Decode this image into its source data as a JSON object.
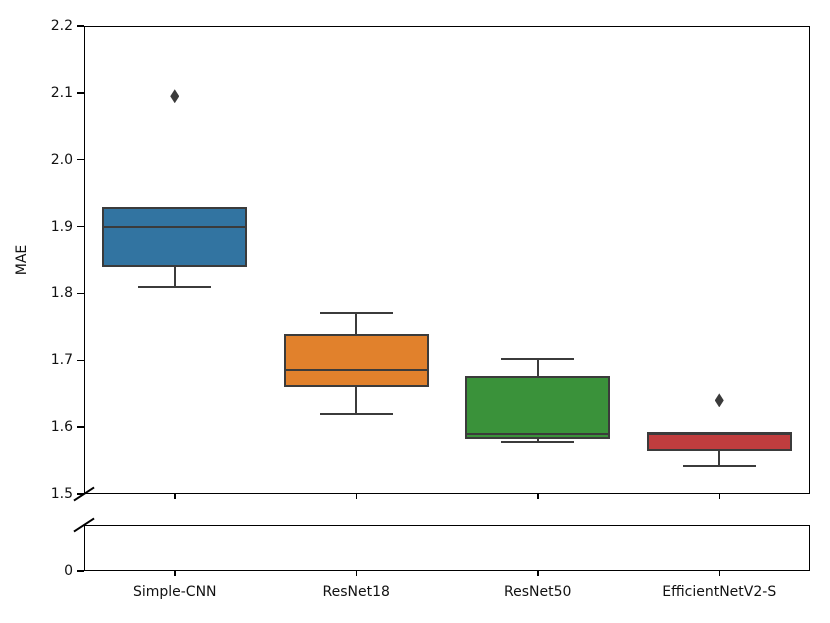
{
  "chart_data": {
    "type": "boxplot",
    "title": "",
    "ylabel": "MAE",
    "categories": [
      "Simple-CNN",
      "ResNet18",
      "ResNet50",
      "EfficientNetV2-S"
    ],
    "series": [
      {
        "name": "Simple-CNN",
        "color": "#3274a1",
        "whisker_low": 1.81,
        "q1": 1.84,
        "median": 1.9,
        "q3": 1.93,
        "whisker_high": 1.93,
        "outliers": [
          2.095
        ]
      },
      {
        "name": "ResNet18",
        "color": "#e1812c",
        "whisker_low": 1.62,
        "q1": 1.66,
        "median": 1.685,
        "q3": 1.74,
        "whisker_high": 1.77,
        "outliers": []
      },
      {
        "name": "ResNet50",
        "color": "#3a923a",
        "whisker_low": 1.578,
        "q1": 1.583,
        "median": 1.59,
        "q3": 1.677,
        "whisker_high": 1.702,
        "outliers": []
      },
      {
        "name": "EfficientNetV2-S",
        "color": "#c03d3e",
        "whisker_low": 1.542,
        "q1": 1.565,
        "median": 1.59,
        "q3": 1.593,
        "whisker_high": 1.593,
        "outliers": [
          1.64
        ]
      }
    ],
    "main_axis": {
      "ylim": [
        1.5,
        2.2
      ],
      "yticks": [
        "2.2",
        "2.1",
        "2.0",
        "1.9",
        "1.8",
        "1.7",
        "1.6",
        "1.5"
      ],
      "grid": false
    },
    "broken_axis": {
      "yticks": [
        "0"
      ]
    },
    "legend": "none",
    "flier_marker": "thin-diamond",
    "colors": {
      "box_line": "#3b3b3b",
      "spine": "#000000",
      "text": "#111111",
      "background": "#ffffff"
    }
  }
}
